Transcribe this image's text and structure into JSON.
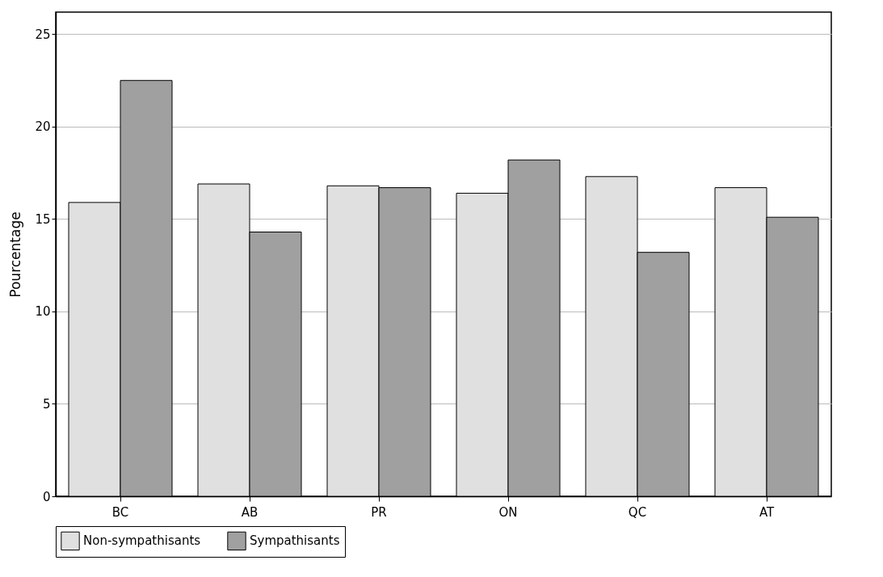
{
  "chart_data": {
    "type": "bar",
    "ylabel": "Pourcentage",
    "categories": [
      "BC",
      "AB",
      "PR",
      "ON",
      "QC",
      "AT"
    ],
    "series": [
      {
        "name": "Non-sympathisants",
        "color": "#e0e0e0",
        "values": [
          15.9,
          16.9,
          16.8,
          16.4,
          17.3,
          16.7
        ]
      },
      {
        "name": "Sympathisants",
        "color": "#a0a0a0",
        "values": [
          22.5,
          14.3,
          16.7,
          18.2,
          13.2,
          15.1
        ]
      }
    ],
    "ylim": [
      0,
      26.2
    ],
    "yticks": [
      0,
      5,
      10,
      15,
      20,
      25
    ],
    "grid": "y",
    "legend": "bottom"
  }
}
